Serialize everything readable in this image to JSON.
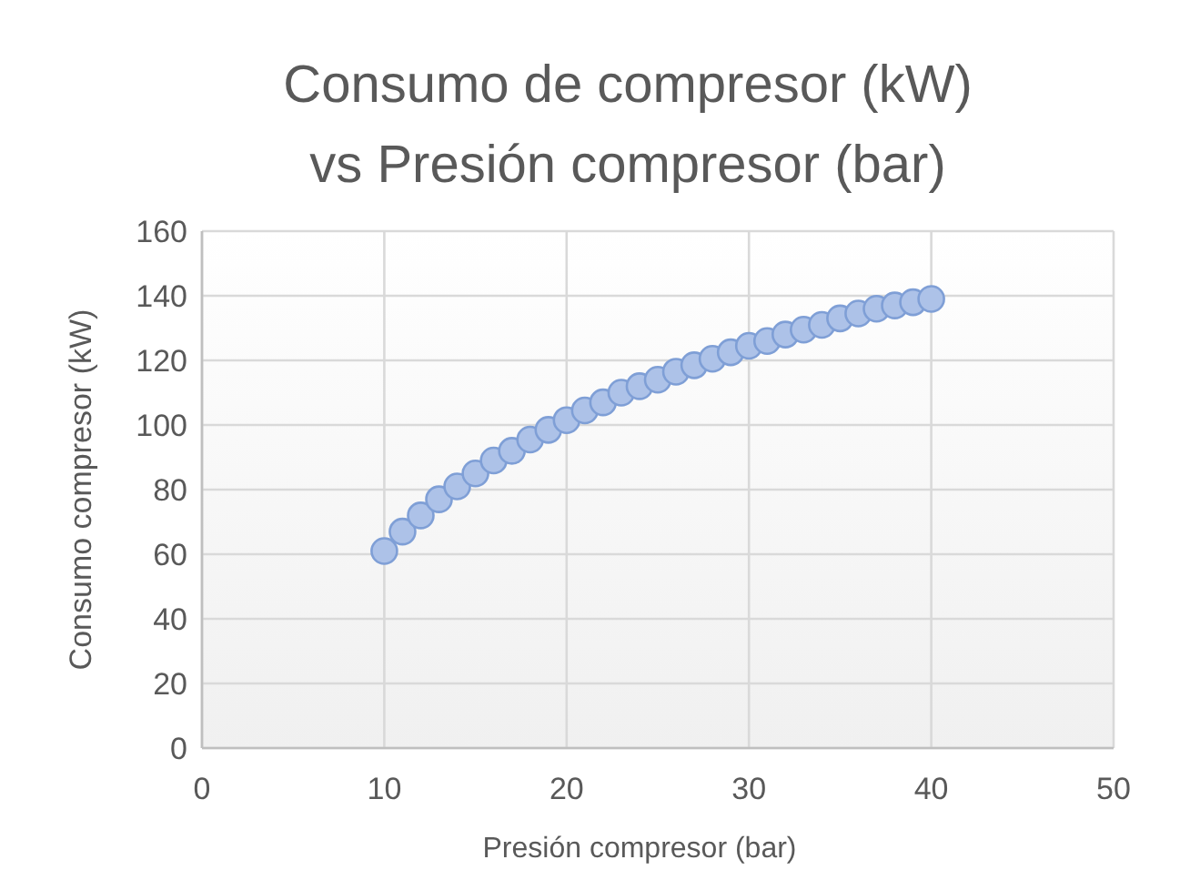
{
  "chart_data": {
    "type": "scatter",
    "title": "Consumo de compresor (kW) vs Presión compresor (bar)",
    "xlabel": "Presión compresor (bar)",
    "ylabel": "Consumo compresor (kW)",
    "x": [
      10,
      11,
      12,
      13,
      14,
      15,
      16,
      17,
      18,
      19,
      20,
      21,
      22,
      23,
      24,
      25,
      26,
      27,
      28,
      29,
      30,
      31,
      32,
      33,
      34,
      35,
      36,
      37,
      38,
      39,
      40
    ],
    "series": [
      {
        "color": "#adc2e8",
        "values": [
          61,
          67,
          72,
          77,
          81,
          85,
          89,
          92,
          95.5,
          98.5,
          101.5,
          104.5,
          107,
          110,
          112,
          114,
          116.5,
          118.5,
          120.5,
          122.5,
          124.5,
          126,
          128,
          129.5,
          131,
          133,
          134.5,
          136,
          137,
          138,
          139
        ]
      }
    ],
    "xlim": [
      0,
      50
    ],
    "xticks": [
      0,
      10,
      20,
      30,
      40,
      50
    ],
    "ylim": [
      0,
      160
    ],
    "yticks": [
      0,
      20,
      40,
      60,
      80,
      100,
      120,
      140,
      160
    ],
    "grid": true,
    "marker": "circle"
  }
}
